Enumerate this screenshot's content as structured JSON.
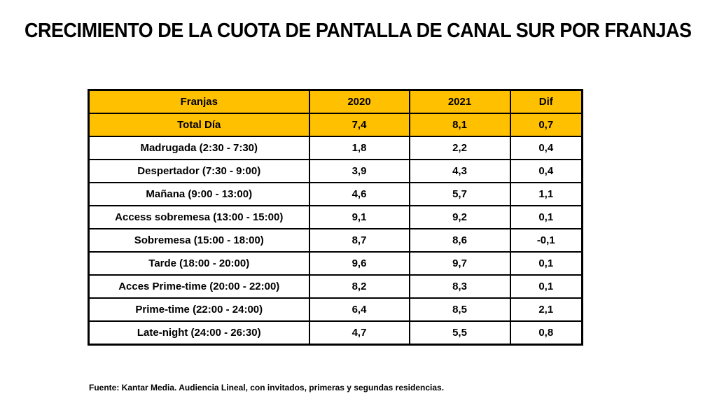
{
  "title": "CRECIMIENTO DE LA CUOTA DE PANTALLA DE CANAL SUR POR FRANJAS",
  "footnote": "Fuente: Kantar Media. Audiencia Lineal, con invitados, primeras y segundas residencias.",
  "colors": {
    "highlight_bg": "#FFC000",
    "border": "#000000",
    "text": "#000000",
    "page_bg": "#FFFFFF"
  },
  "chart_data": {
    "type": "table",
    "title": "CRECIMIENTO DE LA CUOTA DE PANTALLA DE CANAL SUR POR FRANJAS",
    "columns": [
      "Franjas",
      "2020",
      "2021",
      "Dif"
    ],
    "rows": [
      {
        "franja": "Total Día",
        "y2020": "7,4",
        "y2021": "8,1",
        "dif": "0,7",
        "highlight": true
      },
      {
        "franja": "Madrugada (2:30 - 7:30)",
        "y2020": "1,8",
        "y2021": "2,2",
        "dif": "0,4",
        "highlight": false
      },
      {
        "franja": "Despertador (7:30 - 9:00)",
        "y2020": "3,9",
        "y2021": "4,3",
        "dif": "0,4",
        "highlight": false
      },
      {
        "franja": "Mañana (9:00 - 13:00)",
        "y2020": "4,6",
        "y2021": "5,7",
        "dif": "1,1",
        "highlight": false
      },
      {
        "franja": "Access sobremesa (13:00 - 15:00)",
        "y2020": "9,1",
        "y2021": "9,2",
        "dif": "0,1",
        "highlight": false
      },
      {
        "franja": "Sobremesa (15:00 - 18:00)",
        "y2020": "8,7",
        "y2021": "8,6",
        "dif": "-0,1",
        "highlight": false
      },
      {
        "franja": "Tarde (18:00 - 20:00)",
        "y2020": "9,6",
        "y2021": "9,7",
        "dif": "0,1",
        "highlight": false
      },
      {
        "franja": "Acces Prime-time (20:00 - 22:00)",
        "y2020": "8,2",
        "y2021": "8,3",
        "dif": "0,1",
        "highlight": false
      },
      {
        "franja": "Prime-time (22:00 - 24:00)",
        "y2020": "6,4",
        "y2021": "8,5",
        "dif": "2,1",
        "highlight": false
      },
      {
        "franja": "Late-night (24:00 - 26:30)",
        "y2020": "4,7",
        "y2021": "5,5",
        "dif": "0,8",
        "highlight": false
      }
    ]
  }
}
